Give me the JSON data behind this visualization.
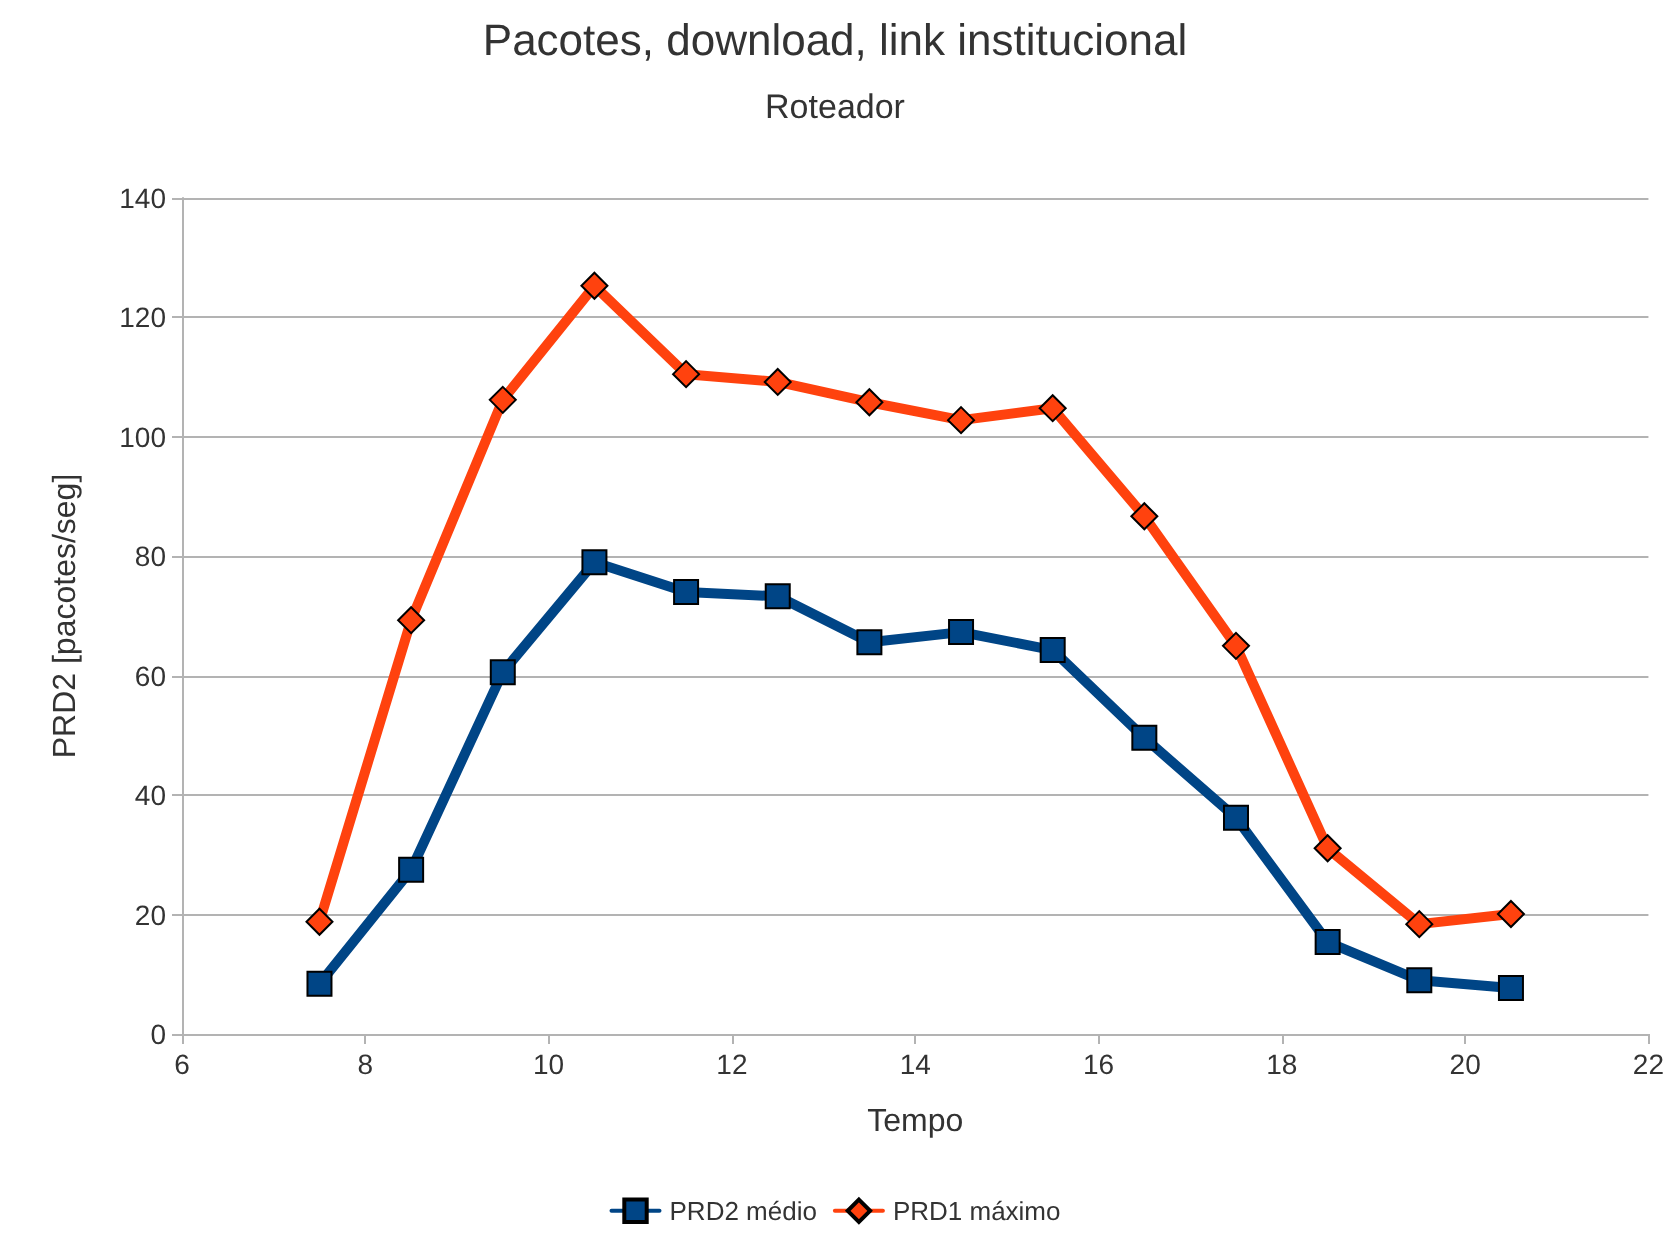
{
  "chart_data": {
    "type": "line",
    "title": "Pacotes, download, link institucional",
    "subtitle": "Roteador",
    "xlabel": "Tempo",
    "ylabel": "PRD2 [pacotes/seg]",
    "x": [
      7.5,
      8.5,
      9.5,
      10.5,
      11.5,
      12.5,
      13.5,
      14.5,
      15.5,
      16.5,
      17.5,
      18.5,
      19.5,
      20.5
    ],
    "series": [
      {
        "name": "PRD2 médio",
        "color": "#004586",
        "marker": "square",
        "values": [
          8.4,
          27.5,
          60.6,
          79,
          74,
          73.3,
          65.6,
          67.3,
          64.3,
          49.6,
          36.2,
          15.4,
          9,
          7.7
        ]
      },
      {
        "name": "PRD1 máximo",
        "color": "#ff420e",
        "marker": "diamond",
        "values": [
          18.8,
          69.3,
          106.2,
          125.3,
          110.5,
          109.2,
          105.8,
          102.8,
          104.8,
          86.7,
          65,
          31.1,
          18.4,
          20.1
        ]
      }
    ],
    "xlim": [
      6,
      22
    ],
    "xticks": [
      6,
      8,
      10,
      12,
      14,
      16,
      18,
      20,
      22
    ],
    "ylim": [
      0,
      140
    ],
    "yticks": [
      0,
      20,
      40,
      60,
      80,
      100,
      120,
      140
    ],
    "grid": "y",
    "legend": "bottom",
    "line_style": "solid"
  }
}
